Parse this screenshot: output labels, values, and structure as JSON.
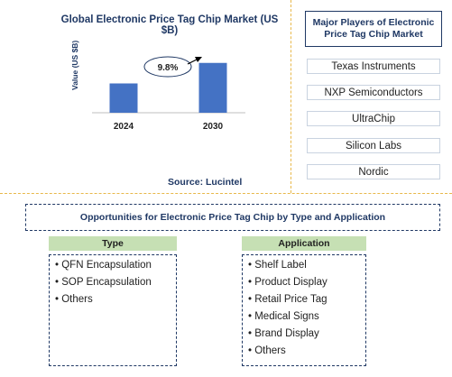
{
  "chart_data": {
    "type": "bar",
    "title": "Global Electronic Price Tag Chip Market (US $B)",
    "ylabel": "Value (US $B)",
    "categories": [
      "2024",
      "2030"
    ],
    "values": [
      1.0,
      1.7
    ],
    "annotation": "9.8%",
    "bar_color": "#4472c4",
    "grid": false
  },
  "source": "Source: Lucintel",
  "players": {
    "title": "Major Players of Electronic Price Tag Chip Market",
    "items": [
      "Texas Instruments",
      "NXP Semiconductors",
      "UltraChip",
      "Silicon Labs",
      "Nordic"
    ]
  },
  "opportunities": {
    "title": "Opportunities for Electronic Price Tag Chip by Type and Application",
    "type": {
      "heading": "Type",
      "items": [
        "• QFN Encapsulation",
        "• SOP Encapsulation",
        "• Others"
      ]
    },
    "application": {
      "heading": "Application",
      "items": [
        "• Shelf Label",
        "• Product Display",
        "• Retail Price Tag",
        "• Medical Signs",
        "• Brand Display",
        "• Others"
      ]
    }
  }
}
